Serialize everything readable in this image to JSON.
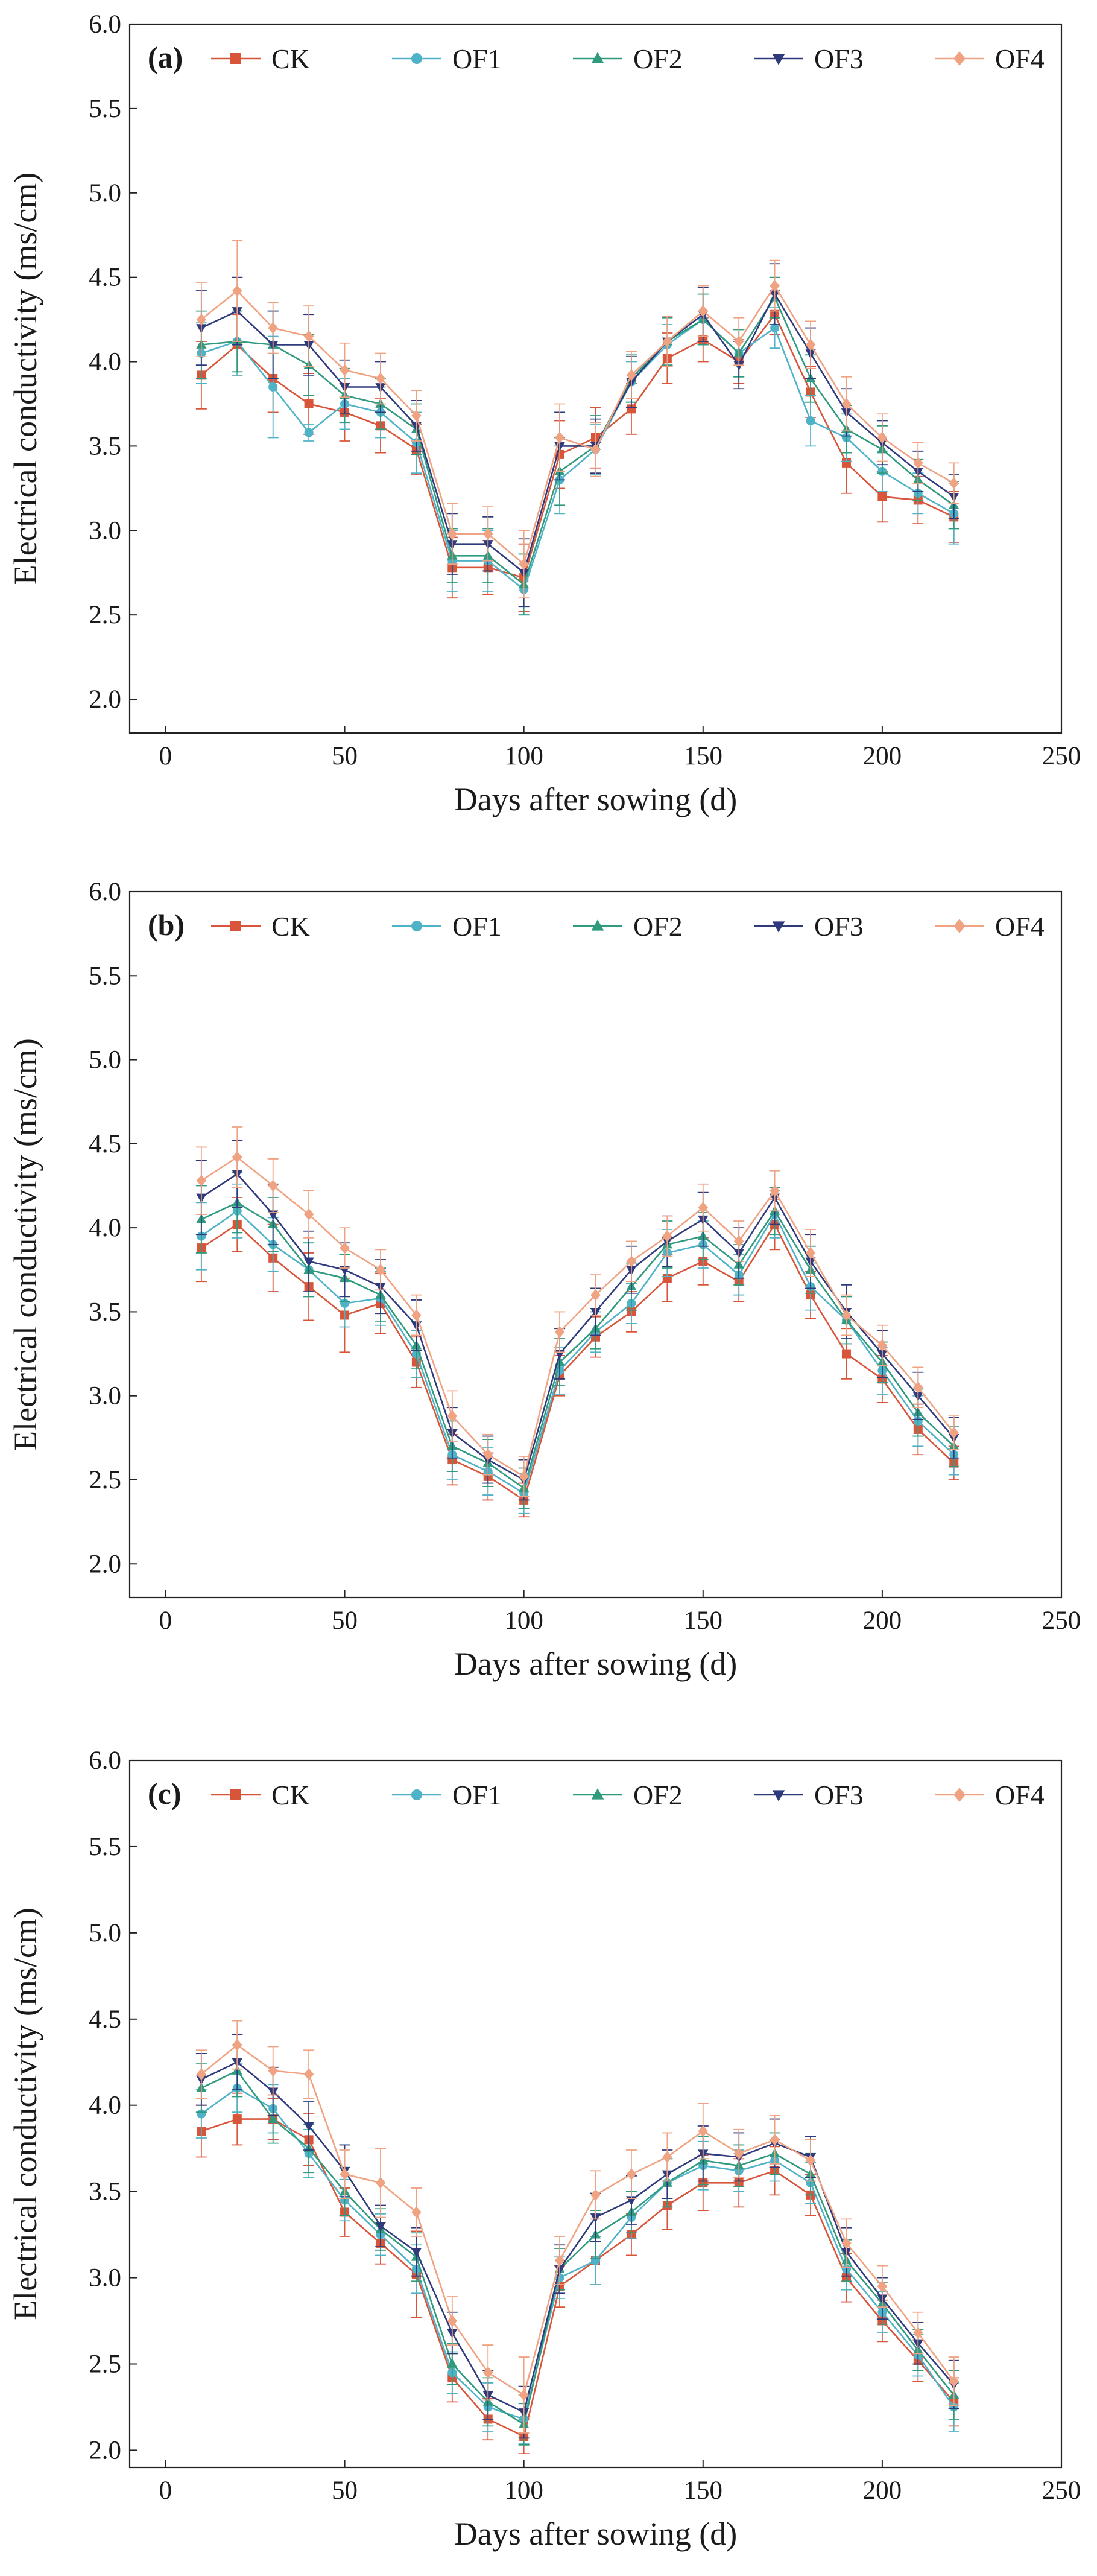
{
  "figure": {
    "series_colors": {
      "CK": "#d8553a",
      "OF1": "#4fb3c8",
      "OF2": "#2f9a7d",
      "OF3": "#2e3a7c",
      "OF4": "#f0a382"
    },
    "series_markers": {
      "CK": "square",
      "OF1": "circle",
      "OF2": "triangle-up",
      "OF3": "triangle-down",
      "OF4": "diamond"
    }
  },
  "chart_data": [
    {
      "type": "line",
      "panel_label": "(a)",
      "xlabel": "Days after sowing  (d)",
      "ylabel": "Electrical conductivity (ms/cm)",
      "xlim": [
        -10,
        250
      ],
      "ylim": [
        1.8,
        6.0
      ],
      "xticks": [
        0,
        50,
        100,
        150,
        200,
        250
      ],
      "yticks": [
        2.0,
        2.5,
        3.0,
        3.5,
        4.0,
        4.5,
        5.0,
        5.5,
        6.0
      ],
      "xtick_labels": [
        "0",
        "50",
        "100",
        "150",
        "200",
        "250"
      ],
      "ytick_labels": [
        "2.0",
        "2.5",
        "3.0",
        "3.5",
        "4.0",
        "4.5",
        "5.0",
        "5.5",
        "6.0"
      ],
      "legend": [
        "CK",
        "OF1",
        "OF2",
        "OF3",
        "OF4"
      ],
      "x": [
        10,
        20,
        30,
        40,
        50,
        60,
        70,
        80,
        90,
        100,
        110,
        120,
        130,
        140,
        150,
        160,
        170,
        180,
        190,
        200,
        210,
        220
      ],
      "series": [
        {
          "name": "CK",
          "values": [
            3.92,
            4.1,
            3.9,
            3.75,
            3.7,
            3.62,
            3.48,
            2.78,
            2.78,
            2.72,
            3.45,
            3.55,
            3.72,
            4.02,
            4.13,
            4.0,
            4.28,
            3.82,
            3.4,
            3.2,
            3.18,
            3.08
          ],
          "err": [
            0.2,
            0.18,
            0.2,
            0.18,
            0.17,
            0.16,
            0.15,
            0.18,
            0.16,
            0.2,
            0.2,
            0.18,
            0.15,
            0.15,
            0.13,
            0.13,
            0.12,
            0.15,
            0.18,
            0.15,
            0.14,
            0.15
          ]
        },
        {
          "name": "OF1",
          "values": [
            4.05,
            4.12,
            3.85,
            3.58,
            3.75,
            3.7,
            3.52,
            2.82,
            2.82,
            2.65,
            3.3,
            3.48,
            3.88,
            4.1,
            4.25,
            4.05,
            4.2,
            3.65,
            3.55,
            3.35,
            3.22,
            3.1
          ],
          "err": [
            0.18,
            0.2,
            0.3,
            0.05,
            0.15,
            0.15,
            0.18,
            0.18,
            0.18,
            0.15,
            0.2,
            0.15,
            0.12,
            0.12,
            0.15,
            0.14,
            0.12,
            0.15,
            0.14,
            0.12,
            0.12,
            0.18
          ]
        },
        {
          "name": "OF2",
          "values": [
            4.1,
            4.12,
            4.1,
            3.98,
            3.8,
            3.75,
            3.6,
            2.85,
            2.85,
            2.68,
            3.35,
            3.5,
            3.9,
            4.12,
            4.25,
            4.05,
            4.38,
            3.9,
            3.6,
            3.48,
            3.3,
            3.15
          ],
          "err": [
            0.2,
            0.18,
            0.2,
            0.18,
            0.16,
            0.15,
            0.15,
            0.16,
            0.16,
            0.18,
            0.2,
            0.18,
            0.14,
            0.14,
            0.15,
            0.14,
            0.12,
            0.14,
            0.14,
            0.14,
            0.12,
            0.14
          ]
        },
        {
          "name": "OF3",
          "values": [
            4.2,
            4.3,
            4.1,
            4.1,
            3.85,
            3.85,
            3.62,
            2.92,
            2.92,
            2.75,
            3.5,
            3.5,
            3.88,
            4.12,
            4.28,
            3.98,
            4.4,
            4.05,
            3.7,
            3.52,
            3.35,
            3.2
          ],
          "err": [
            0.22,
            0.2,
            0.2,
            0.18,
            0.16,
            0.15,
            0.15,
            0.18,
            0.16,
            0.2,
            0.2,
            0.16,
            0.15,
            0.15,
            0.16,
            0.14,
            0.18,
            0.15,
            0.14,
            0.13,
            0.12,
            0.13
          ]
        },
        {
          "name": "OF4",
          "values": [
            4.25,
            4.42,
            4.2,
            4.15,
            3.95,
            3.9,
            3.68,
            2.98,
            2.98,
            2.8,
            3.55,
            3.48,
            3.92,
            4.12,
            4.3,
            4.12,
            4.45,
            4.1,
            3.75,
            3.55,
            3.4,
            3.28
          ],
          "err": [
            0.22,
            0.3,
            0.15,
            0.18,
            0.16,
            0.15,
            0.15,
            0.18,
            0.16,
            0.2,
            0.2,
            0.16,
            0.14,
            0.15,
            0.15,
            0.14,
            0.15,
            0.14,
            0.16,
            0.14,
            0.12,
            0.12
          ]
        }
      ]
    },
    {
      "type": "line",
      "panel_label": "(b)",
      "xlabel": "Days after sowing  (d)",
      "ylabel": "Electrical conductivity (ms/cm)",
      "xlim": [
        -10,
        250
      ],
      "ylim": [
        1.8,
        6.0
      ],
      "xticks": [
        0,
        50,
        100,
        150,
        200,
        250
      ],
      "yticks": [
        2.0,
        2.5,
        3.0,
        3.5,
        4.0,
        4.5,
        5.0,
        5.5,
        6.0
      ],
      "xtick_labels": [
        "0",
        "50",
        "100",
        "150",
        "200",
        "250"
      ],
      "ytick_labels": [
        "2.0",
        "2.5",
        "3.0",
        "3.5",
        "4.0",
        "4.5",
        "5.0",
        "5.5",
        "6.0"
      ],
      "legend": [
        "CK",
        "OF1",
        "OF2",
        "OF3",
        "OF4"
      ],
      "x": [
        10,
        20,
        30,
        40,
        50,
        60,
        70,
        80,
        90,
        100,
        110,
        120,
        130,
        140,
        150,
        160,
        170,
        180,
        190,
        200,
        210,
        220
      ],
      "series": [
        {
          "name": "CK",
          "values": [
            3.88,
            4.02,
            3.82,
            3.65,
            3.48,
            3.55,
            3.2,
            2.62,
            2.52,
            2.38,
            3.12,
            3.35,
            3.5,
            3.7,
            3.8,
            3.68,
            4.02,
            3.6,
            3.25,
            3.1,
            2.8,
            2.6
          ],
          "err": [
            0.2,
            0.16,
            0.2,
            0.2,
            0.22,
            0.18,
            0.15,
            0.15,
            0.14,
            0.1,
            0.12,
            0.12,
            0.12,
            0.14,
            0.14,
            0.12,
            0.15,
            0.14,
            0.15,
            0.14,
            0.15,
            0.1
          ]
        },
        {
          "name": "OF1",
          "values": [
            3.95,
            4.1,
            3.9,
            3.75,
            3.55,
            3.58,
            3.25,
            2.65,
            2.55,
            2.42,
            3.15,
            3.38,
            3.55,
            3.85,
            3.9,
            3.72,
            4.08,
            3.65,
            3.45,
            3.15,
            2.85,
            2.65
          ],
          "err": [
            0.2,
            0.16,
            0.16,
            0.16,
            0.14,
            0.16,
            0.14,
            0.15,
            0.14,
            0.12,
            0.14,
            0.12,
            0.12,
            0.14,
            0.14,
            0.12,
            0.14,
            0.14,
            0.14,
            0.14,
            0.15,
            0.12
          ]
        },
        {
          "name": "OF2",
          "values": [
            4.05,
            4.15,
            4.02,
            3.75,
            3.7,
            3.6,
            3.3,
            2.7,
            2.6,
            2.45,
            3.2,
            3.4,
            3.65,
            3.9,
            3.95,
            3.78,
            4.1,
            3.75,
            3.45,
            3.2,
            2.9,
            2.7
          ],
          "err": [
            0.2,
            0.18,
            0.16,
            0.16,
            0.14,
            0.16,
            0.14,
            0.15,
            0.14,
            0.12,
            0.14,
            0.12,
            0.14,
            0.14,
            0.14,
            0.12,
            0.14,
            0.14,
            0.14,
            0.12,
            0.14,
            0.12
          ]
        },
        {
          "name": "OF3",
          "values": [
            4.18,
            4.32,
            4.08,
            3.8,
            3.75,
            3.65,
            3.42,
            2.78,
            2.62,
            2.5,
            3.25,
            3.5,
            3.75,
            3.92,
            4.05,
            3.85,
            4.18,
            3.8,
            3.5,
            3.25,
            3.0,
            2.75
          ],
          "err": [
            0.22,
            0.2,
            0.18,
            0.18,
            0.16,
            0.16,
            0.15,
            0.15,
            0.14,
            0.12,
            0.15,
            0.14,
            0.14,
            0.15,
            0.16,
            0.15,
            0.16,
            0.16,
            0.16,
            0.14,
            0.14,
            0.12
          ]
        },
        {
          "name": "OF4",
          "values": [
            4.28,
            4.42,
            4.25,
            4.08,
            3.88,
            3.75,
            3.48,
            2.88,
            2.65,
            2.52,
            3.38,
            3.6,
            3.8,
            3.95,
            4.12,
            3.92,
            4.22,
            3.85,
            3.48,
            3.3,
            3.05,
            2.78
          ],
          "err": [
            0.2,
            0.18,
            0.16,
            0.14,
            0.12,
            0.12,
            0.12,
            0.15,
            0.12,
            0.12,
            0.12,
            0.12,
            0.12,
            0.12,
            0.14,
            0.12,
            0.12,
            0.14,
            0.12,
            0.12,
            0.12,
            0.1
          ]
        }
      ]
    },
    {
      "type": "line",
      "panel_label": "(c)",
      "xlabel": "Days after sowing  (d)",
      "ylabel": "Electrical conductivity (ms/cm)",
      "xlim": [
        -10,
        250
      ],
      "ylim": [
        1.9,
        6.0
      ],
      "xticks": [
        0,
        50,
        100,
        150,
        200,
        250
      ],
      "yticks": [
        2.0,
        2.5,
        3.0,
        3.5,
        4.0,
        4.5,
        5.0,
        5.5,
        6.0
      ],
      "xtick_labels": [
        "0",
        "50",
        "100",
        "150",
        "200",
        "250"
      ],
      "ytick_labels": [
        "2.0",
        "2.5",
        "3.0",
        "3.5",
        "4.0",
        "4.5",
        "5.0",
        "5.5",
        "6.0"
      ],
      "legend": [
        "CK",
        "OF1",
        "OF2",
        "OF3",
        "OF4"
      ],
      "x": [
        10,
        20,
        30,
        40,
        50,
        60,
        70,
        80,
        90,
        100,
        110,
        120,
        130,
        140,
        150,
        160,
        170,
        180,
        190,
        200,
        210,
        220
      ],
      "series": [
        {
          "name": "CK",
          "values": [
            3.85,
            3.92,
            3.92,
            3.8,
            3.38,
            3.2,
            3.02,
            2.42,
            2.18,
            2.08,
            2.95,
            3.1,
            3.25,
            3.42,
            3.55,
            3.55,
            3.62,
            3.48,
            3.0,
            2.75,
            2.52,
            2.28
          ],
          "err": [
            0.15,
            0.15,
            0.12,
            0.15,
            0.14,
            0.12,
            0.25,
            0.14,
            0.12,
            0.1,
            0.12,
            0.14,
            0.12,
            0.14,
            0.16,
            0.14,
            0.14,
            0.12,
            0.14,
            0.12,
            0.12,
            0.14
          ]
        },
        {
          "name": "OF1",
          "values": [
            3.95,
            4.1,
            3.98,
            3.72,
            3.45,
            3.25,
            3.05,
            2.45,
            2.25,
            2.18,
            3.0,
            3.1,
            3.35,
            3.55,
            3.65,
            3.62,
            3.68,
            3.55,
            3.05,
            2.8,
            2.55,
            2.25
          ],
          "err": [
            0.14,
            0.14,
            0.14,
            0.14,
            0.12,
            0.12,
            0.14,
            0.12,
            0.14,
            0.14,
            0.12,
            0.14,
            0.12,
            0.14,
            0.14,
            0.12,
            0.12,
            0.12,
            0.12,
            0.12,
            0.12,
            0.14
          ]
        },
        {
          "name": "OF2",
          "values": [
            4.1,
            4.2,
            3.92,
            3.75,
            3.5,
            3.28,
            3.12,
            2.5,
            2.28,
            2.15,
            3.05,
            3.25,
            3.38,
            3.55,
            3.68,
            3.65,
            3.72,
            3.6,
            3.1,
            2.85,
            2.58,
            2.32
          ],
          "err": [
            0.14,
            0.15,
            0.14,
            0.14,
            0.14,
            0.12,
            0.14,
            0.12,
            0.14,
            0.12,
            0.12,
            0.14,
            0.12,
            0.14,
            0.14,
            0.12,
            0.12,
            0.12,
            0.12,
            0.12,
            0.12,
            0.14
          ]
        },
        {
          "name": "OF3",
          "values": [
            4.15,
            4.25,
            4.08,
            3.88,
            3.62,
            3.3,
            3.15,
            2.68,
            2.32,
            2.22,
            3.05,
            3.35,
            3.45,
            3.6,
            3.72,
            3.7,
            3.78,
            3.7,
            3.15,
            2.88,
            2.62,
            2.38
          ],
          "err": [
            0.15,
            0.16,
            0.14,
            0.14,
            0.15,
            0.12,
            0.14,
            0.12,
            0.14,
            0.15,
            0.14,
            0.14,
            0.14,
            0.14,
            0.16,
            0.14,
            0.14,
            0.12,
            0.14,
            0.12,
            0.12,
            0.14
          ]
        },
        {
          "name": "OF4",
          "values": [
            4.18,
            4.35,
            4.2,
            4.18,
            3.6,
            3.55,
            3.38,
            2.75,
            2.45,
            2.32,
            3.1,
            3.48,
            3.6,
            3.7,
            3.85,
            3.72,
            3.8,
            3.68,
            3.2,
            2.95,
            2.68,
            2.4
          ],
          "err": [
            0.14,
            0.14,
            0.14,
            0.14,
            0.14,
            0.2,
            0.14,
            0.14,
            0.16,
            0.22,
            0.14,
            0.14,
            0.14,
            0.14,
            0.16,
            0.14,
            0.14,
            0.12,
            0.14,
            0.12,
            0.12,
            0.14
          ]
        }
      ]
    }
  ]
}
